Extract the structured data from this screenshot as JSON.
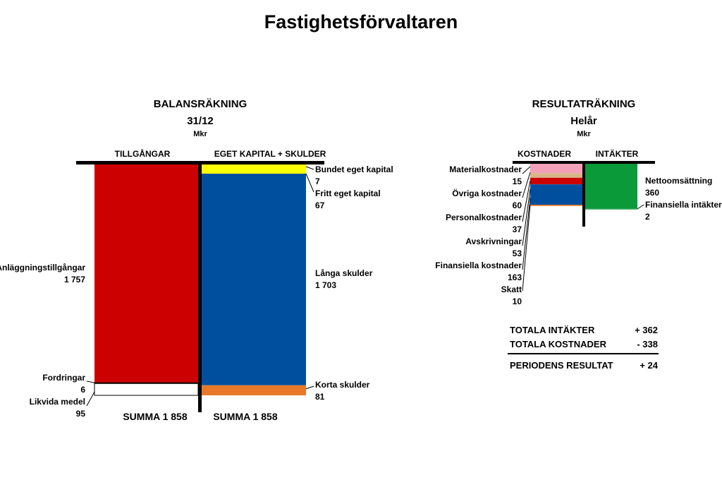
{
  "title": "Fastighetsförvaltaren",
  "colors": {
    "red": "#cc0000",
    "blue": "#004f9f",
    "yellow": "#ffff00",
    "orange": "#e8782a",
    "green": "#0b9a3a",
    "pink": "#f2a0b8",
    "tan": "#d9b48a",
    "white": "#ffffff"
  },
  "chart_data": [
    {
      "type": "bar",
      "title": "BALANSRÄKNING",
      "subtitle": "31/12",
      "unit": "Mkr",
      "columns": [
        {
          "header": "TILLGÅNGAR",
          "sum_label": "SUMMA 1 858",
          "items": [
            {
              "label": "Anläggningstillgångar",
              "value": 1757,
              "value_text": "1 757",
              "color": "#cc0000"
            },
            {
              "label": "Fordringar",
              "value": 6,
              "value_text": "6",
              "color": "#ffffff"
            },
            {
              "label": "Likvida medel",
              "value": 95,
              "value_text": "95",
              "color": "#ffffff"
            }
          ]
        },
        {
          "header": "EGET KAPITAL + SKULDER",
          "sum_label": "SUMMA 1 858",
          "items": [
            {
              "label": "Bundet eget kapital",
              "value": 7,
              "value_text": "7",
              "color": "#ffff00"
            },
            {
              "label": "Fritt eget kapital",
              "value": 67,
              "value_text": "67",
              "color": "#ffff00"
            },
            {
              "label": "Långa skulder",
              "value": 1703,
              "value_text": "1 703",
              "color": "#004f9f"
            },
            {
              "label": "Korta skulder",
              "value": 81,
              "value_text": "81",
              "color": "#e8782a"
            }
          ]
        }
      ]
    },
    {
      "type": "bar",
      "title": "RESULTATRÄKNING",
      "subtitle": "Helår",
      "unit": "Mkr",
      "columns": [
        {
          "header": "KOSTNADER",
          "items": [
            {
              "label": "Materialkostnader",
              "value": 15,
              "value_text": "15",
              "color": "#f2a0b8"
            },
            {
              "label": "Övriga kostnader",
              "value": 60,
              "value_text": "60",
              "color": "#f2a0b8"
            },
            {
              "label": "Personalkostnader",
              "value": 37,
              "value_text": "37",
              "color": "#d9b48a"
            },
            {
              "label": "Avskrivningar",
              "value": 53,
              "value_text": "53",
              "color": "#cc0000"
            },
            {
              "label": "Finansiella kostnader",
              "value": 163,
              "value_text": "163",
              "color": "#004f9f"
            },
            {
              "label": "Skatt",
              "value": 10,
              "value_text": "10",
              "color": "#e8782a"
            }
          ]
        },
        {
          "header": "INTÄKTER",
          "items": [
            {
              "label": "Nettoomsättning",
              "value": 360,
              "value_text": "360",
              "color": "#0b9a3a"
            },
            {
              "label": "Finansiella intäkter",
              "value": 2,
              "value_text": "2",
              "color": "#0b9a3a"
            }
          ]
        }
      ],
      "totals": [
        {
          "label": "TOTALA INTÄKTER",
          "value": "+ 362"
        },
        {
          "label": "TOTALA KOSTNADER",
          "value": "- 338"
        },
        {
          "label": "PERIODENS RESULTAT",
          "value": "+ 24"
        }
      ]
    }
  ]
}
